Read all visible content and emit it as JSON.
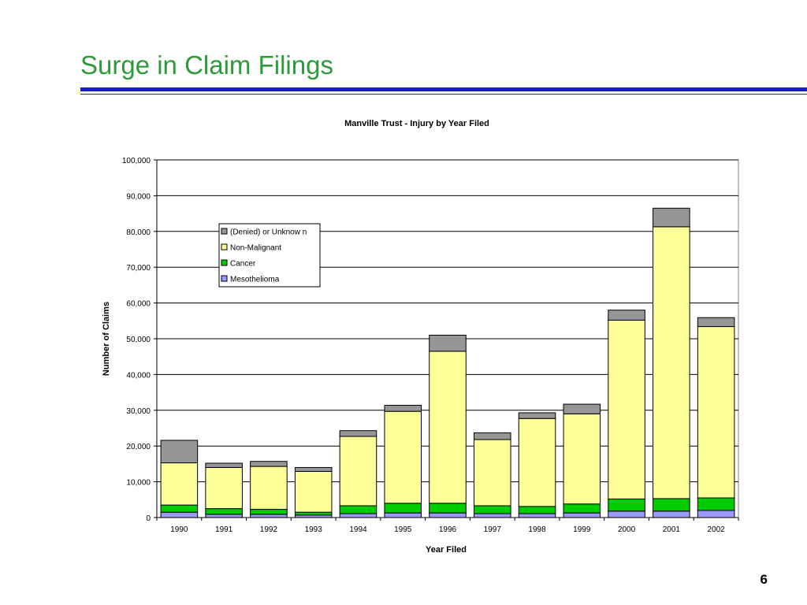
{
  "slide": {
    "title": "Surge in Claim Filings",
    "page_number": "6"
  },
  "colors": {
    "title": "#2e9b3b",
    "rule": "#1a1ad6",
    "mesothelioma": "#9999ff",
    "cancer": "#00cc00",
    "non_malignant": "#ffff99",
    "denied_unknown": "#969696"
  },
  "chart_data": {
    "type": "bar",
    "stacked": true,
    "title": "Manville Trust - Injury by Year Filed",
    "xlabel": "Year Filed",
    "ylabel": "Number of Claims",
    "ylim": [
      0,
      100000
    ],
    "yticks": [
      0,
      10000,
      20000,
      30000,
      40000,
      50000,
      60000,
      70000,
      80000,
      90000,
      100000
    ],
    "ytick_labels": [
      "0",
      "10,000",
      "20,000",
      "30,000",
      "40,000",
      "50,000",
      "60,000",
      "70,000",
      "80,000",
      "90,000",
      "100,000"
    ],
    "grid": true,
    "legend_position": "upper-left inside plot",
    "categories": [
      "1990",
      "1991",
      "1992",
      "1993",
      "1994",
      "1995",
      "1996",
      "1997",
      "1998",
      "1999",
      "2000",
      "2001",
      "2002"
    ],
    "series": [
      {
        "name": "Mesothelioma",
        "color": "#9999ff",
        "values": [
          1500,
          900,
          900,
          700,
          1100,
          1300,
          1300,
          1100,
          1100,
          1300,
          1800,
          1800,
          2000
        ]
      },
      {
        "name": "Cancer",
        "color": "#00cc00",
        "values": [
          2000,
          1600,
          1400,
          800,
          2200,
          2700,
          2700,
          2200,
          2000,
          2500,
          3400,
          3500,
          3500
        ]
      },
      {
        "name": "Non-Malignant",
        "color": "#ffff99",
        "values": [
          11800,
          11500,
          12000,
          11400,
          19400,
          25700,
          42500,
          18500,
          24600,
          25200,
          50000,
          76000,
          47900
        ]
      },
      {
        "name": "(Denied) or Unknow n",
        "color": "#969696",
        "values": [
          6300,
          1200,
          1400,
          1100,
          1600,
          1700,
          4500,
          1900,
          1600,
          2700,
          2800,
          5200,
          2500
        ]
      }
    ],
    "legend_order": [
      "(Denied) or Unknow n",
      "Non-Malignant",
      "Cancer",
      "Mesothelioma"
    ]
  }
}
